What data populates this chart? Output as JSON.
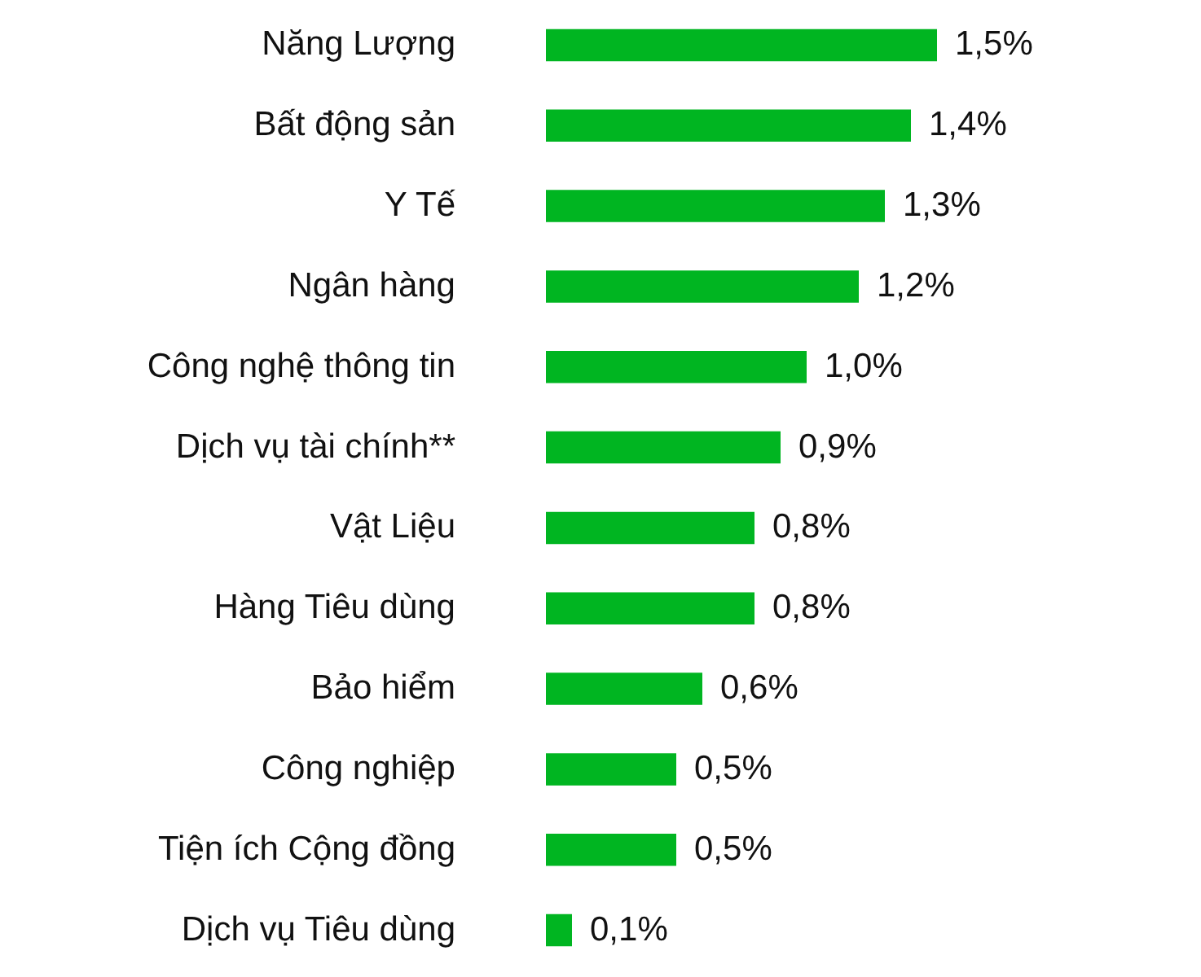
{
  "chart_data": {
    "type": "bar",
    "orientation": "horizontal",
    "categories": [
      "Năng Lượng",
      "Bất động sản",
      "Y Tế",
      "Ngân hàng",
      "Công nghệ thông tin",
      "Dịch vụ tài chính**",
      "Vật Liệu",
      "Hàng Tiêu dùng",
      "Bảo hiểm",
      "Công nghiệp",
      "Tiện ích Cộng đồng",
      "Dịch vụ Tiêu dùng"
    ],
    "values": [
      1.5,
      1.4,
      1.3,
      1.2,
      1.0,
      0.9,
      0.8,
      0.8,
      0.6,
      0.5,
      0.5,
      0.1
    ],
    "color": "#00b521",
    "value_labels": [
      "1,5%",
      "1,4%",
      "1,3%",
      "1,2%",
      "1,0%",
      "0,9%",
      "0,8%",
      "0,8%",
      "0,6%",
      "0,5%",
      "0,5%",
      "0,1%"
    ]
  }
}
